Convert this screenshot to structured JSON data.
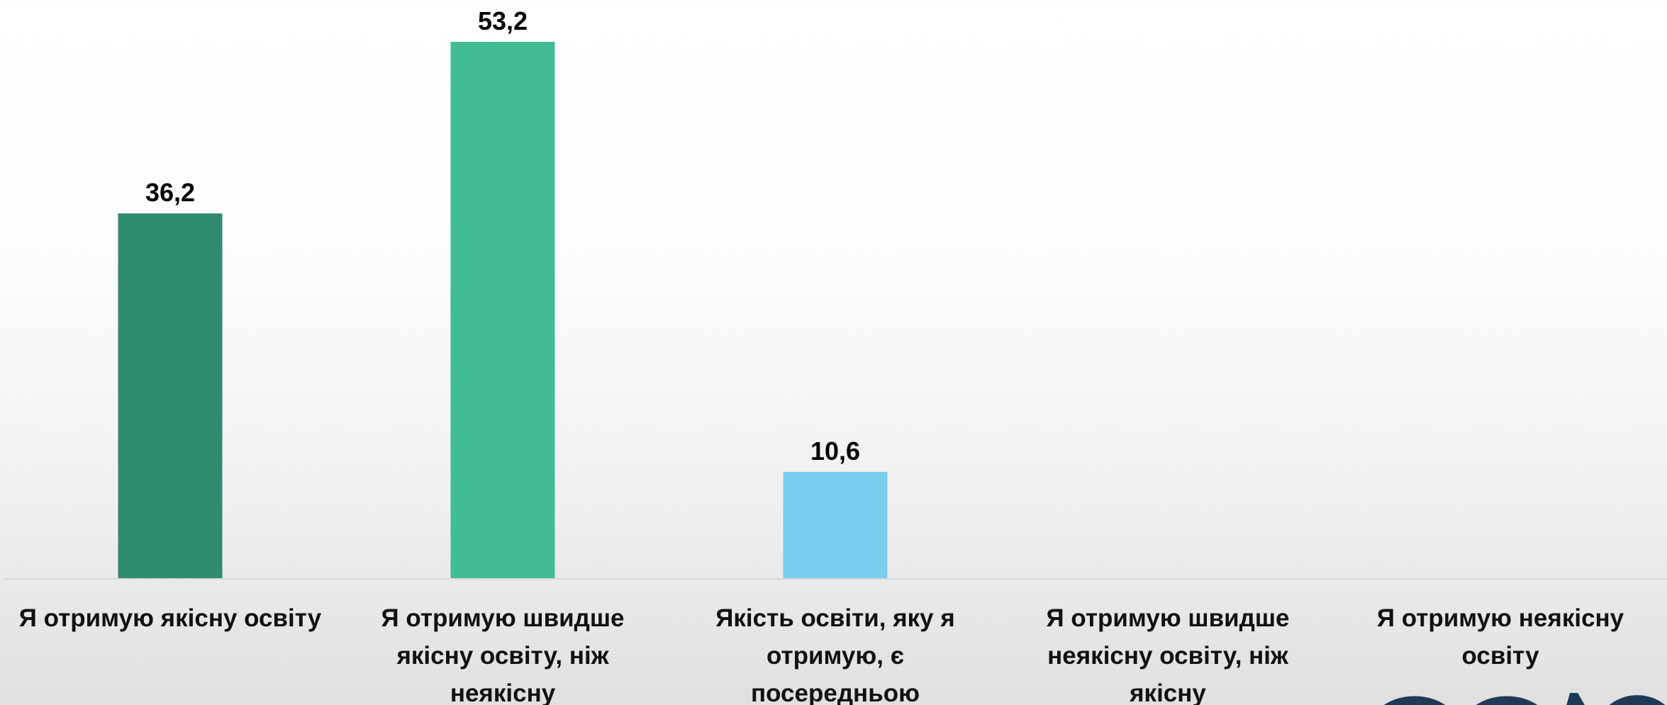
{
  "chart_data": {
    "type": "bar",
    "categories": [
      "Я отримую якісну освіту",
      "Я отримую швидше якісну освіту, ніж неякісну",
      "Якість освіти, яку я отримую, є посередньою",
      "Я отримую швидше неякісну освіту, ніж якісну",
      "Я отримую неякісну освіту"
    ],
    "values": [
      36.2,
      53.2,
      10.6,
      null,
      null
    ],
    "value_labels": [
      "36,2",
      "53,2",
      "10,6",
      "",
      ""
    ],
    "bar_colors": [
      "#2e8b6f",
      "#42bb96",
      "#7bcdef",
      "#7bcdef",
      "#7bcdef"
    ],
    "title": "",
    "xlabel": "",
    "ylabel": "",
    "ylim": [
      0,
      55
    ],
    "grid": false,
    "legend": "none",
    "baseline_color": "#d9d9d9"
  },
  "logo": {
    "color": "#1f3a57"
  }
}
